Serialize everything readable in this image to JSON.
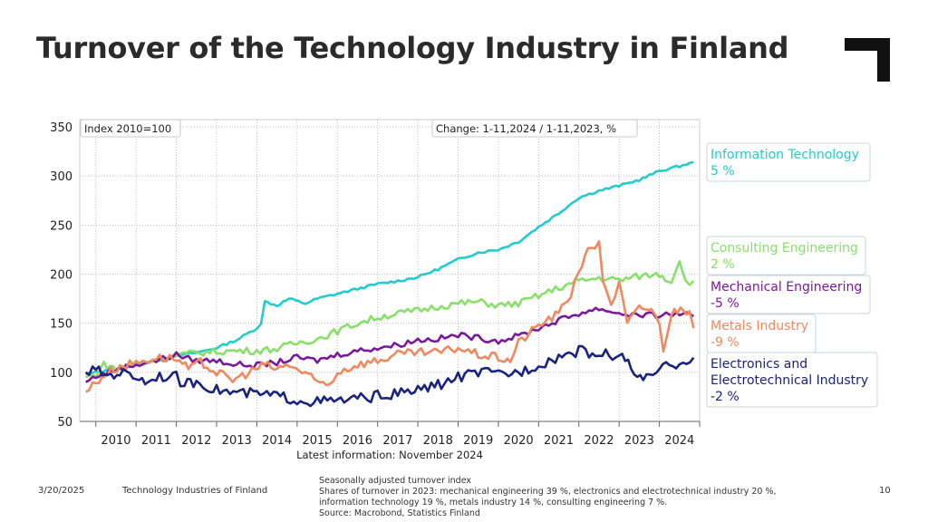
{
  "title": "Turnover of the Technology Industry in Finland",
  "footer": {
    "date": "3/20/2025",
    "org": "Technology Industries of Finland",
    "page": "10",
    "notes": [
      "Seasonally adjusted turnover index",
      "Shares of turnover in 2023: mechanical engineering 39 %, electronics and electrotechnical industry 20 %,",
      "information technology 19 %, metals industry 14 %, consulting engineering 7 %.",
      "Source: Macrobond, Statistics Finland"
    ]
  },
  "chart_data": {
    "type": "line",
    "index_label": "Index 2010=100",
    "change_label": "Change: 1-11,2024 / 1-11,2023, %",
    "latest_info": "Latest information: November 2024",
    "ylim": [
      50,
      350
    ],
    "yticks": [
      50,
      100,
      150,
      200,
      250,
      300,
      350
    ],
    "xlim": [
      2009.6,
      2025.0
    ],
    "xticks": [
      "2010",
      "2011",
      "2012",
      "2013",
      "2014",
      "2015",
      "2016",
      "2017",
      "2018",
      "2019",
      "2020",
      "2021",
      "2022",
      "2023",
      "2024"
    ],
    "series": [
      {
        "name": "Information Technology",
        "change": "5 %",
        "color": "#22cccc",
        "points": [
          [
            2009.75,
            98
          ],
          [
            2010.0,
            100
          ],
          [
            2010.5,
            103
          ],
          [
            2011.0,
            108
          ],
          [
            2011.5,
            112
          ],
          [
            2012.0,
            117
          ],
          [
            2012.5,
            120
          ],
          [
            2013.0,
            125
          ],
          [
            2013.5,
            133
          ],
          [
            2014.0,
            145
          ],
          [
            2014.1,
            150
          ],
          [
            2014.2,
            172
          ],
          [
            2014.5,
            168
          ],
          [
            2014.8,
            175
          ],
          [
            2015.2,
            170
          ],
          [
            2015.5,
            175
          ],
          [
            2016.0,
            180
          ],
          [
            2016.5,
            185
          ],
          [
            2017.0,
            190
          ],
          [
            2017.5,
            193
          ],
          [
            2018.0,
            197
          ],
          [
            2018.5,
            205
          ],
          [
            2019.0,
            215
          ],
          [
            2019.5,
            222
          ],
          [
            2020.0,
            225
          ],
          [
            2020.5,
            233
          ],
          [
            2021.0,
            248
          ],
          [
            2021.5,
            262
          ],
          [
            2022.0,
            278
          ],
          [
            2022.5,
            285
          ],
          [
            2023.0,
            290
          ],
          [
            2023.5,
            296
          ],
          [
            2024.0,
            305
          ],
          [
            2024.5,
            310
          ],
          [
            2024.85,
            314
          ]
        ]
      },
      {
        "name": "Consulting Engineering",
        "change": "2 %",
        "color": "#88e06a",
        "points": [
          [
            2009.75,
            95
          ],
          [
            2010.0,
            98
          ],
          [
            2010.2,
            108
          ],
          [
            2010.5,
            104
          ],
          [
            2011.0,
            107
          ],
          [
            2011.5,
            113
          ],
          [
            2012.0,
            117
          ],
          [
            2012.5,
            120
          ],
          [
            2013.0,
            121
          ],
          [
            2013.5,
            122
          ],
          [
            2014.0,
            122
          ],
          [
            2014.5,
            124
          ],
          [
            2015.0,
            130
          ],
          [
            2015.5,
            134
          ],
          [
            2016.0,
            142
          ],
          [
            2016.5,
            150
          ],
          [
            2017.0,
            156
          ],
          [
            2017.5,
            160
          ],
          [
            2018.0,
            163
          ],
          [
            2018.5,
            167
          ],
          [
            2019.0,
            170
          ],
          [
            2019.5,
            172
          ],
          [
            2020.0,
            168
          ],
          [
            2020.5,
            170
          ],
          [
            2021.0,
            178
          ],
          [
            2021.5,
            186
          ],
          [
            2022.0,
            193
          ],
          [
            2022.5,
            196
          ],
          [
            2023.0,
            194
          ],
          [
            2023.5,
            198
          ],
          [
            2024.0,
            200
          ],
          [
            2024.3,
            192
          ],
          [
            2024.5,
            216
          ],
          [
            2024.65,
            192
          ],
          [
            2024.85,
            193
          ]
        ]
      },
      {
        "name": "Mechanical Engineering",
        "change": "-5 %",
        "color": "#7a1a9a",
        "points": [
          [
            2009.75,
            90
          ],
          [
            2010.0,
            96
          ],
          [
            2010.5,
            103
          ],
          [
            2011.0,
            108
          ],
          [
            2011.5,
            112
          ],
          [
            2012.0,
            118
          ],
          [
            2012.3,
            114
          ],
          [
            2012.5,
            112
          ],
          [
            2013.0,
            112
          ],
          [
            2013.5,
            108
          ],
          [
            2014.0,
            107
          ],
          [
            2014.5,
            110
          ],
          [
            2015.0,
            115
          ],
          [
            2015.5,
            112
          ],
          [
            2016.0,
            118
          ],
          [
            2016.5,
            122
          ],
          [
            2017.0,
            125
          ],
          [
            2017.5,
            128
          ],
          [
            2018.0,
            133
          ],
          [
            2018.5,
            134
          ],
          [
            2019.0,
            138
          ],
          [
            2019.5,
            135
          ],
          [
            2020.0,
            132
          ],
          [
            2020.5,
            137
          ],
          [
            2021.0,
            145
          ],
          [
            2021.5,
            153
          ],
          [
            2022.0,
            160
          ],
          [
            2022.5,
            165
          ],
          [
            2023.0,
            160
          ],
          [
            2023.5,
            158
          ],
          [
            2024.0,
            158
          ],
          [
            2024.5,
            160
          ],
          [
            2024.85,
            157
          ]
        ]
      },
      {
        "name": "Metals Industry",
        "change": "-9 %",
        "color": "#f08860",
        "points": [
          [
            2009.75,
            80
          ],
          [
            2010.0,
            90
          ],
          [
            2010.3,
            100
          ],
          [
            2010.6,
            106
          ],
          [
            2011.0,
            110
          ],
          [
            2011.5,
            115
          ],
          [
            2012.0,
            114
          ],
          [
            2012.3,
            103
          ],
          [
            2012.6,
            110
          ],
          [
            2013.0,
            100
          ],
          [
            2013.4,
            92
          ],
          [
            2013.8,
            100
          ],
          [
            2014.2,
            108
          ],
          [
            2014.5,
            103
          ],
          [
            2014.8,
            108
          ],
          [
            2015.2,
            98
          ],
          [
            2015.5,
            90
          ],
          [
            2015.8,
            88
          ],
          [
            2016.0,
            100
          ],
          [
            2016.5,
            108
          ],
          [
            2017.0,
            112
          ],
          [
            2017.5,
            118
          ],
          [
            2018.0,
            120
          ],
          [
            2018.5,
            120
          ],
          [
            2019.0,
            125
          ],
          [
            2019.5,
            118
          ],
          [
            2020.0,
            115
          ],
          [
            2020.3,
            112
          ],
          [
            2020.5,
            130
          ],
          [
            2021.0,
            148
          ],
          [
            2021.5,
            160
          ],
          [
            2021.8,
            180
          ],
          [
            2022.0,
            205
          ],
          [
            2022.3,
            228
          ],
          [
            2022.5,
            230
          ],
          [
            2022.6,
            195
          ],
          [
            2022.8,
            170
          ],
          [
            2023.0,
            190
          ],
          [
            2023.2,
            150
          ],
          [
            2023.5,
            165
          ],
          [
            2023.8,
            165
          ],
          [
            2024.0,
            148
          ],
          [
            2024.1,
            125
          ],
          [
            2024.3,
            160
          ],
          [
            2024.6,
            167
          ],
          [
            2024.75,
            158
          ],
          [
            2024.85,
            145
          ]
        ]
      },
      {
        "name": "Electronics and Electrotechnical Industry",
        "change": "-2 %",
        "color": "#1a237e",
        "points": [
          [
            2009.75,
            100
          ],
          [
            2010.0,
            102
          ],
          [
            2010.3,
            97
          ],
          [
            2010.6,
            100
          ],
          [
            2011.0,
            96
          ],
          [
            2011.3,
            90
          ],
          [
            2011.5,
            97
          ],
          [
            2012.0,
            95
          ],
          [
            2012.2,
            87
          ],
          [
            2012.5,
            91
          ],
          [
            2013.0,
            82
          ],
          [
            2013.5,
            79
          ],
          [
            2014.0,
            78
          ],
          [
            2014.5,
            76
          ],
          [
            2015.0,
            72
          ],
          [
            2015.5,
            70
          ],
          [
            2016.0,
            71
          ],
          [
            2016.5,
            73
          ],
          [
            2017.0,
            76
          ],
          [
            2017.5,
            78
          ],
          [
            2018.0,
            82
          ],
          [
            2018.5,
            87
          ],
          [
            2019.0,
            95
          ],
          [
            2019.5,
            100
          ],
          [
            2020.0,
            98
          ],
          [
            2020.5,
            100
          ],
          [
            2021.0,
            108
          ],
          [
            2021.5,
            116
          ],
          [
            2022.0,
            122
          ],
          [
            2022.5,
            118
          ],
          [
            2023.0,
            118
          ],
          [
            2023.3,
            105
          ],
          [
            2023.6,
            90
          ],
          [
            2024.0,
            103
          ],
          [
            2024.5,
            110
          ],
          [
            2024.85,
            115
          ]
        ]
      }
    ]
  }
}
